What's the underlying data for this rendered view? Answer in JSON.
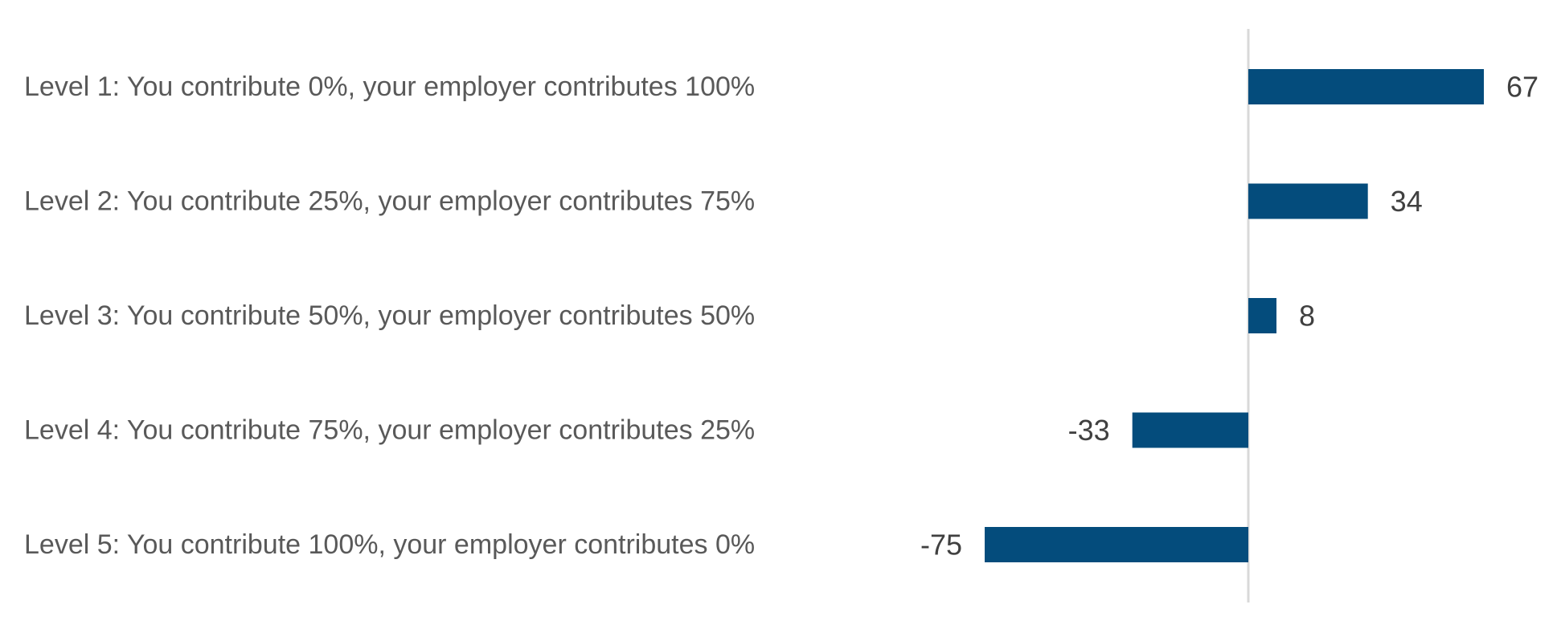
{
  "chart_data": {
    "type": "bar",
    "orientation": "horizontal",
    "categories": [
      "Level 1: You contribute 0%, your employer contributes 100%",
      "Level 2: You contribute 25%, your employer contributes 75%",
      "Level 3: You contribute 50%, your employer contributes 50%",
      "Level 4: You contribute 75%, your employer contributes 25%",
      "Level 5: You contribute 100%, your employer contributes 0%"
    ],
    "values": [
      67,
      34,
      8,
      -33,
      -75
    ],
    "data_labels": [
      "67",
      "34",
      "8",
      "-33",
      "-75"
    ],
    "title": "",
    "xlabel": "",
    "ylabel": "",
    "xlim": [
      -100,
      100
    ],
    "grid": false,
    "legend": "none",
    "bar_color": "#044C7C",
    "axis_color": "#D9D9D9"
  }
}
